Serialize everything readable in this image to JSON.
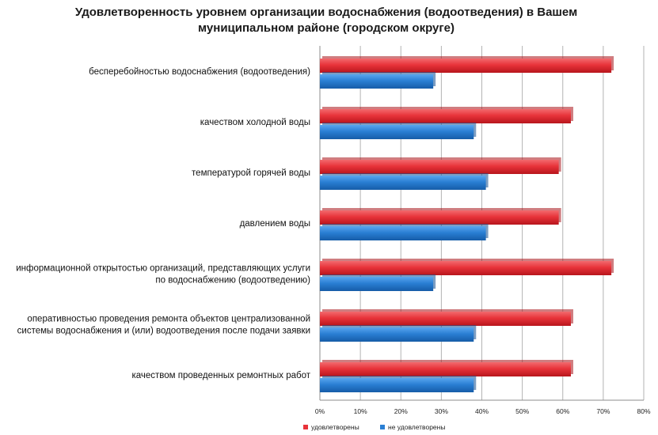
{
  "chart_data": {
    "type": "bar",
    "orientation": "horizontal",
    "title": "Удовлетворенность уровнем организации водоснабжения (водоотведения) в Вашем муниципальном районе (городском округе)",
    "title_lines": [
      "Удовлетворенность уровнем организации водоснабжения (водоотведения) в Вашем",
      "муниципальном районе (городском округе)"
    ],
    "categories": [
      [
        "бесперебойностью водоснабжения (водоотведения)"
      ],
      [
        "качеством холодной воды"
      ],
      [
        "температурой горячей воды"
      ],
      [
        "давлением воды"
      ],
      [
        "информационной открытостью организаций, представляющих услуги",
        "по водоснабжению (водоотведению)"
      ],
      [
        "оперативностью проведения  ремонта объектов централизованной",
        "системы водоснабжения и (или) водоотведения  после подачи заявки"
      ],
      [
        "качеством проведенных ремонтных работ"
      ]
    ],
    "series": [
      {
        "name": "удовлетворены",
        "color": "#e8333a",
        "values": [
          72,
          62,
          59,
          59,
          72,
          62,
          62
        ]
      },
      {
        "name": "не удовлетворены",
        "color": "#2a7fd4",
        "values": [
          28,
          38,
          41,
          41,
          28,
          38,
          38
        ]
      }
    ],
    "xlim": [
      0,
      80
    ],
    "xticks": [
      0,
      10,
      20,
      30,
      40,
      50,
      60,
      70,
      80
    ],
    "tick_suffix": "%",
    "grid": true,
    "legend_position": "bottom"
  }
}
